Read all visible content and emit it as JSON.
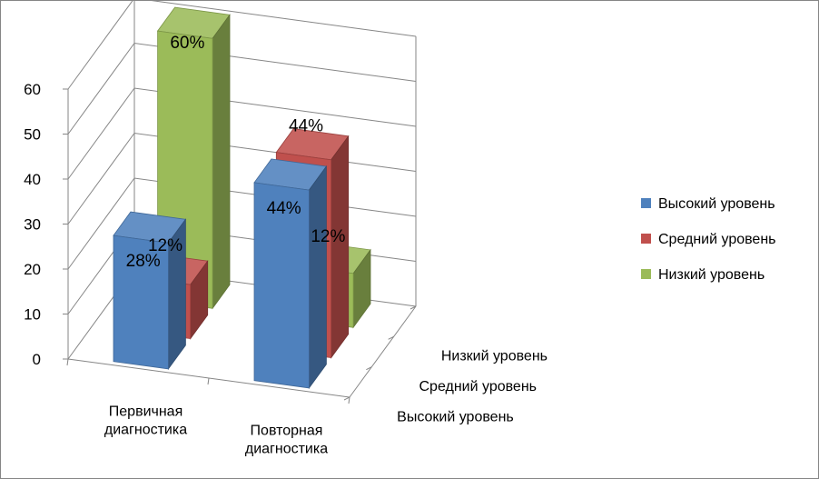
{
  "chart_data": {
    "type": "bar",
    "subtype": "3d-clustered-column",
    "categories": [
      "Первичная диагностика",
      "Повторная диагностика"
    ],
    "category_lines": [
      [
        "Первичная",
        "диагностика"
      ],
      [
        "Повторная",
        "диагностика"
      ]
    ],
    "series": [
      {
        "name": "Высокий уровень",
        "values": [
          28,
          44
        ],
        "labels": [
          "28%",
          "44%"
        ],
        "color": "#4f81bd"
      },
      {
        "name": "Средний уровень",
        "values": [
          12,
          44
        ],
        "labels": [
          "12%",
          "44%"
        ],
        "color": "#c0504d"
      },
      {
        "name": "Низкий уровень",
        "values": [
          60,
          12
        ],
        "labels": [
          "60%",
          "12%"
        ],
        "color": "#9bbb59"
      }
    ],
    "depth_labels": [
      "Высокий уровень",
      "Средний уровень",
      "Низкий уровень"
    ],
    "yticks": [
      "0",
      "10",
      "20",
      "30",
      "40",
      "50",
      "60"
    ],
    "ylim": [
      0,
      60
    ],
    "grid": true,
    "legend": "right"
  }
}
